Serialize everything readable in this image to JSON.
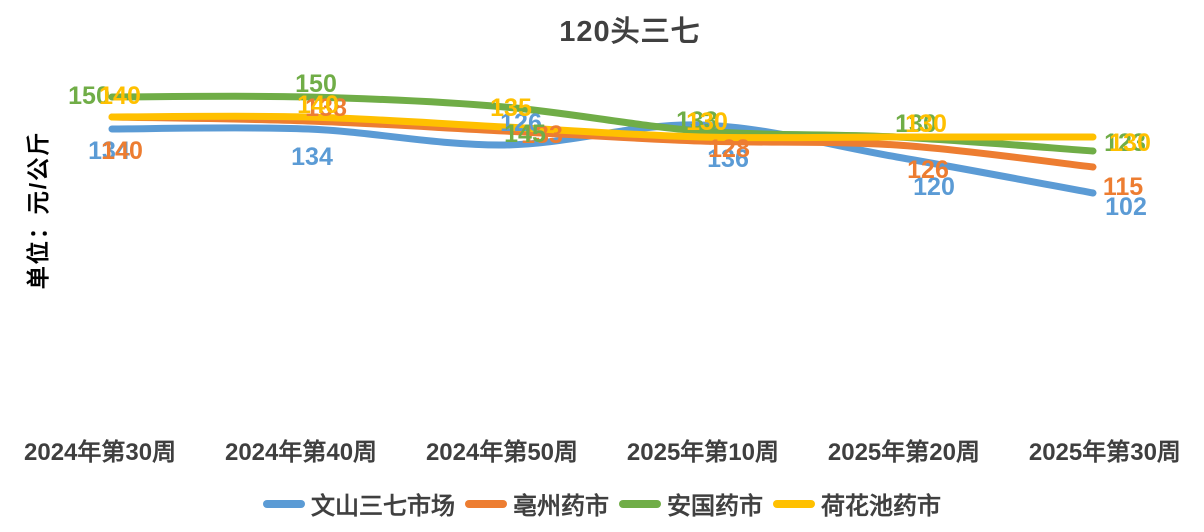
{
  "title": "120头三七",
  "y_axis_label": "单位：元/公斤",
  "chart_data": {
    "type": "line",
    "title": "120头三七",
    "ylabel": "单位：元/公斤",
    "xlabel": "",
    "categories": [
      "2024年第30周",
      "2024年第40周",
      "2024年第50周",
      "2025年第10周",
      "2025年第20周",
      "2025年第30周"
    ],
    "series": [
      {
        "name": "文山三七市场",
        "color": "#5B9BD5",
        "values": [
          134,
          134,
          126,
          136,
          120,
          102
        ]
      },
      {
        "name": "亳州药市",
        "color": "#ED7D31",
        "values": [
          140,
          138,
          133,
          128,
          126,
          115
        ]
      },
      {
        "name": "安国药市",
        "color": "#70AD47",
        "values": [
          150,
          150,
          145,
          133,
          130,
          123
        ]
      },
      {
        "name": "荷花池药市",
        "color": "#FFC000",
        "values": [
          140,
          140,
          135,
          130,
          130,
          130
        ]
      }
    ],
    "ylim": [
      90,
      160
    ],
    "grid": false,
    "axes_visible": false,
    "smooth": true,
    "data_labels": true,
    "legend_position": "bottom",
    "label_offsets": {
      "文山三七市场": [
        [
          -3,
          21
        ],
        [
          4,
          27
        ],
        [
          17,
          -23
        ],
        [
          27,
          33
        ],
        [
          37,
          29
        ],
        [
          33,
          13
        ]
      ],
      "亳州药市": [
        [
          10,
          33
        ],
        [
          18,
          -14
        ],
        [
          38,
          3
        ],
        [
          28,
          7
        ],
        [
          31,
          24
        ],
        [
          30,
          19
        ]
      ],
      "安国药市": [
        [
          -23,
          -2
        ],
        [
          8,
          -14
        ],
        [
          21,
          26
        ],
        [
          -4,
          -11
        ],
        [
          19,
          -14
        ],
        [
          32,
          -9
        ]
      ],
      "荷花池药市": [
        [
          8,
          -22
        ],
        [
          10,
          -13
        ],
        [
          7,
          -20
        ],
        [
          6,
          -16
        ],
        [
          29,
          -14
        ],
        [
          37,
          5
        ]
      ]
    }
  }
}
